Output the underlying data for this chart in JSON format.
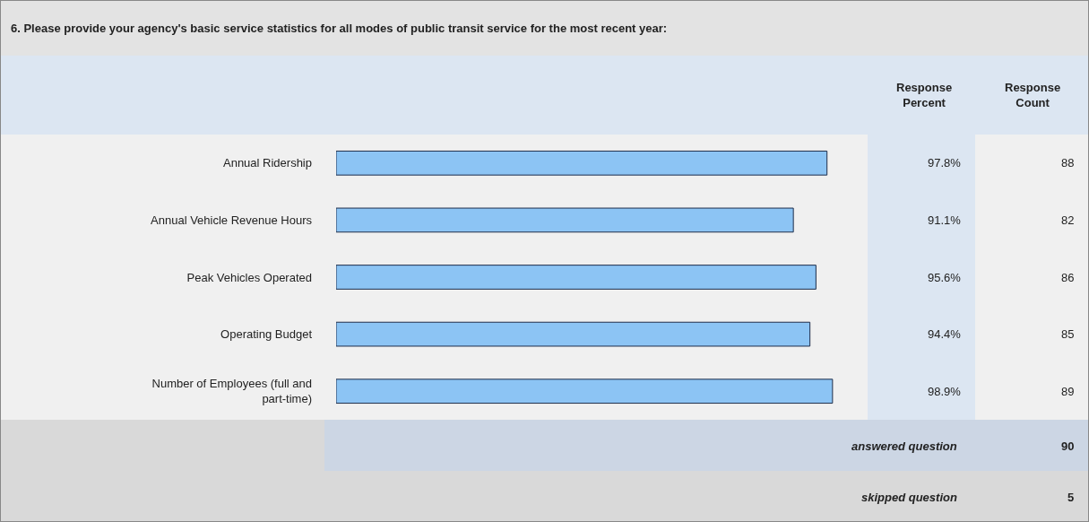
{
  "chart_data": {
    "type": "bar",
    "orientation": "horizontal",
    "title": "6. Please provide your agency's basic service statistics for all modes of public transit service for the most recent year:",
    "categories": [
      "Annual Ridership",
      "Annual Vehicle Revenue Hours",
      "Peak Vehicles Operated",
      "Operating Budget",
      "Number of Employees (full and part-time)"
    ],
    "values": [
      97.8,
      91.1,
      95.6,
      94.4,
      98.9
    ],
    "value_labels": [
      "97.8%",
      "91.1%",
      "95.6%",
      "94.4%",
      "98.9%"
    ],
    "color": "#8cc4f4",
    "tick_labels": "y",
    "annotations": [
      "Response Percent",
      "Response Count",
      "88",
      "82",
      "86",
      "85",
      "89",
      "answered question",
      "90",
      "skipped question",
      "5"
    ]
  }
}
